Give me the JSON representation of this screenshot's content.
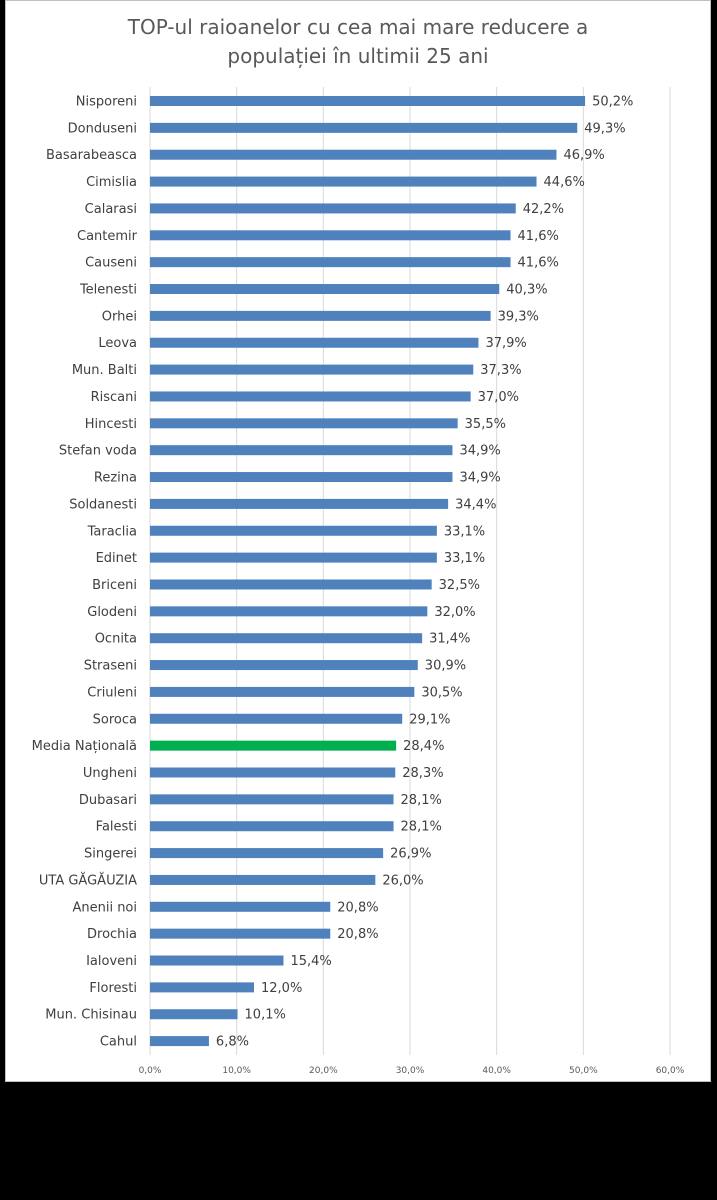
{
  "chart_data": {
    "type": "bar",
    "orientation": "horizontal",
    "title_lines": [
      "TOP-ul raioanelor cu cea mai mare reducere a",
      "populației în ultimii 25 ani"
    ],
    "categories": [
      "Nisporeni",
      "Donduseni",
      "Basarabeasca",
      "Cimislia",
      "Calarasi",
      "Cantemir",
      "Causeni",
      "Telenesti",
      "Orhei",
      "Leova",
      "Mun. Balti",
      "Riscani",
      "Hincesti",
      "Stefan voda",
      "Rezina",
      "Soldanesti",
      "Taraclia",
      "Edinet",
      "Briceni",
      "Glodeni",
      "Ocnita",
      "Straseni",
      "Criuleni",
      "Soroca",
      "Media Națională",
      "Ungheni",
      "Dubasari",
      "Falesti",
      "Singerei",
      "UTA GĂGĂUZIA",
      "Anenii noi",
      "Drochia",
      "Ialoveni",
      "Floresti",
      "Mun. Chisinau",
      "Cahul"
    ],
    "values": [
      50.2,
      49.3,
      46.9,
      44.6,
      42.2,
      41.6,
      41.6,
      40.3,
      39.3,
      37.9,
      37.3,
      37.0,
      35.5,
      34.9,
      34.9,
      34.4,
      33.1,
      33.1,
      32.5,
      32.0,
      31.4,
      30.9,
      30.5,
      29.1,
      28.4,
      28.3,
      28.1,
      28.1,
      26.9,
      26.0,
      20.8,
      20.8,
      15.4,
      12.0,
      10.1,
      6.8
    ],
    "value_labels": [
      "50,2%",
      "49,3%",
      "46,9%",
      "44,6%",
      "42,2%",
      "41,6%",
      "41,6%",
      "40,3%",
      "39,3%",
      "37,9%",
      "37,3%",
      "37,0%",
      "35,5%",
      "34,9%",
      "34,9%",
      "34,4%",
      "33,1%",
      "33,1%",
      "32,5%",
      "32,0%",
      "31,4%",
      "30,9%",
      "30,5%",
      "29,1%",
      "28,4%",
      "28,3%",
      "28,1%",
      "28,1%",
      "26,9%",
      "26,0%",
      "20,8%",
      "20,8%",
      "15,4%",
      "12,0%",
      "10,1%",
      "6,8%"
    ],
    "highlight_category": "Media Națională",
    "xlim": [
      0,
      60
    ],
    "x_ticks": [
      0,
      10,
      20,
      30,
      40,
      50,
      60
    ],
    "x_tick_labels": [
      "0,0%",
      "10,0%",
      "20,0%",
      "30,0%",
      "40,0%",
      "50,0%",
      "60,0%"
    ],
    "grid": true,
    "legend": "none",
    "colors": {
      "bar": "#4f81bd",
      "highlight": "#00b050",
      "grid": "#d9d9d9"
    }
  }
}
